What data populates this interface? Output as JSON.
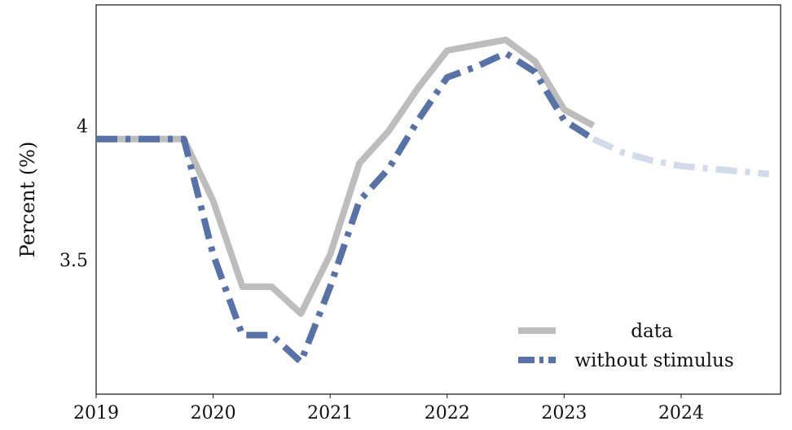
{
  "chart_data": {
    "type": "line",
    "ylabel": "Percent (%)",
    "xlim": [
      2019.0,
      2024.85
    ],
    "ylim": [
      3.0,
      4.45
    ],
    "x_ticks": [
      {
        "value": 2019,
        "label": "2019"
      },
      {
        "value": 2020,
        "label": "2020"
      },
      {
        "value": 2021,
        "label": "2021"
      },
      {
        "value": 2022,
        "label": "2022"
      },
      {
        "value": 2023,
        "label": "2023"
      },
      {
        "value": 2024,
        "label": "2024"
      }
    ],
    "y_ticks": [
      {
        "value": 3.5,
        "label": "3.5"
      },
      {
        "value": 4.0,
        "label": "4"
      }
    ],
    "grid": false,
    "legend_position": "bottom-right",
    "series": [
      {
        "name": "data",
        "color": "#bdbdbd",
        "style": "solid",
        "x": [
          2019.0,
          2019.25,
          2019.5,
          2019.75,
          2020.0,
          2020.25,
          2020.5,
          2020.75,
          2021.0,
          2021.25,
          2021.5,
          2021.75,
          2022.0,
          2022.25,
          2022.5,
          2022.75,
          2023.0,
          2023.25
        ],
        "y": [
          3.95,
          3.95,
          3.95,
          3.95,
          3.72,
          3.4,
          3.4,
          3.3,
          3.52,
          3.86,
          3.98,
          4.14,
          4.28,
          4.3,
          4.32,
          4.24,
          4.06,
          4.0
        ]
      },
      {
        "name": "without stimulus",
        "color": "#5672a8",
        "style": "dashdot",
        "x": [
          2019.0,
          2019.25,
          2019.5,
          2019.75,
          2020.0,
          2020.25,
          2020.5,
          2020.75,
          2021.0,
          2021.25,
          2021.5,
          2021.75,
          2022.0,
          2022.25,
          2022.5,
          2022.75,
          2023.0,
          2023.25
        ],
        "y": [
          3.95,
          3.95,
          3.95,
          3.95,
          3.52,
          3.22,
          3.22,
          3.12,
          3.4,
          3.72,
          3.84,
          4.02,
          4.18,
          4.22,
          4.27,
          4.2,
          4.02,
          3.95
        ]
      },
      {
        "name": "",
        "color": "#d2dbea",
        "style": "dashdot",
        "x": [
          2023.25,
          2023.5,
          2023.75,
          2024.0,
          2024.25,
          2024.5,
          2024.75
        ],
        "y": [
          3.95,
          3.9,
          3.87,
          3.85,
          3.84,
          3.83,
          3.82
        ]
      }
    ]
  },
  "legend": [
    {
      "label": "data",
      "color": "#bdbdbd",
      "style": "solid"
    },
    {
      "label": "without stimulus",
      "color": "#5672a8",
      "style": "dashdot"
    }
  ]
}
